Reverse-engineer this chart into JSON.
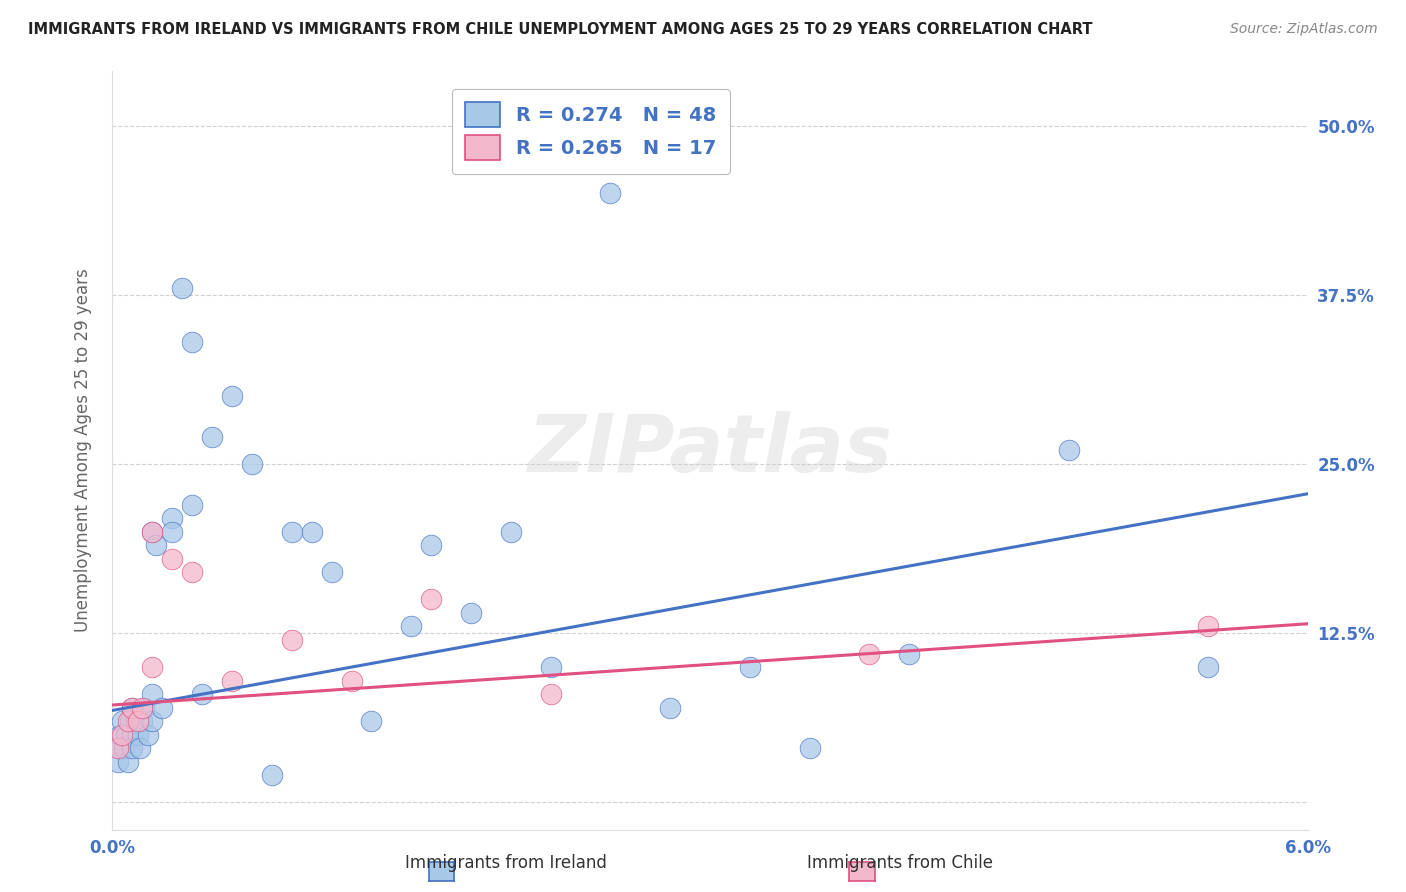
{
  "title": "IMMIGRANTS FROM IRELAND VS IMMIGRANTS FROM CHILE UNEMPLOYMENT AMONG AGES 25 TO 29 YEARS CORRELATION CHART",
  "source": "Source: ZipAtlas.com",
  "ylabel": "Unemployment Among Ages 25 to 29 years",
  "xlabel_ireland": "Immigrants from Ireland",
  "xlabel_chile": "Immigrants from Chile",
  "xlim": [
    0.0,
    0.06
  ],
  "ylim": [
    -0.02,
    0.54
  ],
  "xticks": [
    0.0,
    0.01,
    0.02,
    0.03,
    0.04,
    0.05,
    0.06
  ],
  "xticklabels": [
    "0.0%",
    "",
    "",
    "",
    "",
    "",
    "6.0%"
  ],
  "yticks": [
    0.0,
    0.125,
    0.25,
    0.375,
    0.5
  ],
  "yticklabels": [
    "",
    "12.5%",
    "25.0%",
    "37.5%",
    "50.0%"
  ],
  "ireland_R": 0.274,
  "ireland_N": 48,
  "chile_R": 0.265,
  "chile_N": 17,
  "ireland_color": "#a8c8e8",
  "chile_color": "#f4b8cc",
  "ireland_line_color": "#4472c4",
  "chile_line_color": "#e05080",
  "legend_ireland_label": "R = 0.274   N = 48",
  "legend_chile_label": "R = 0.265   N = 17",
  "ireland_x": [
    0.0003,
    0.0003,
    0.0004,
    0.0005,
    0.0006,
    0.0007,
    0.0008,
    0.0009,
    0.001,
    0.001,
    0.001,
    0.0012,
    0.0013,
    0.0014,
    0.0015,
    0.0016,
    0.0018,
    0.002,
    0.002,
    0.002,
    0.0022,
    0.0025,
    0.003,
    0.003,
    0.0035,
    0.004,
    0.004,
    0.0045,
    0.005,
    0.006,
    0.007,
    0.008,
    0.009,
    0.01,
    0.011,
    0.013,
    0.015,
    0.016,
    0.018,
    0.02,
    0.022,
    0.025,
    0.028,
    0.032,
    0.035,
    0.04,
    0.048,
    0.055
  ],
  "ireland_y": [
    0.04,
    0.03,
    0.05,
    0.06,
    0.04,
    0.05,
    0.03,
    0.06,
    0.07,
    0.05,
    0.04,
    0.06,
    0.05,
    0.04,
    0.06,
    0.07,
    0.05,
    0.2,
    0.08,
    0.06,
    0.19,
    0.07,
    0.21,
    0.2,
    0.38,
    0.34,
    0.22,
    0.08,
    0.27,
    0.3,
    0.25,
    0.02,
    0.2,
    0.2,
    0.17,
    0.06,
    0.13,
    0.19,
    0.14,
    0.2,
    0.1,
    0.45,
    0.07,
    0.1,
    0.04,
    0.11,
    0.26,
    0.1
  ],
  "chile_x": [
    0.0003,
    0.0005,
    0.0008,
    0.001,
    0.0013,
    0.0015,
    0.002,
    0.002,
    0.003,
    0.004,
    0.006,
    0.009,
    0.012,
    0.016,
    0.022,
    0.038,
    0.055
  ],
  "chile_y": [
    0.04,
    0.05,
    0.06,
    0.07,
    0.06,
    0.07,
    0.2,
    0.1,
    0.18,
    0.17,
    0.09,
    0.12,
    0.09,
    0.15,
    0.08,
    0.11,
    0.13
  ],
  "ireland_line_y0": 0.068,
  "ireland_line_y1": 0.228,
  "chile_line_y0": 0.072,
  "chile_line_y1": 0.132,
  "background_color": "#ffffff",
  "grid_color": "#cccccc",
  "title_color": "#222222",
  "axis_label_color": "#666666",
  "tick_label_color": "#4472c4",
  "watermark": "ZIPatlas"
}
